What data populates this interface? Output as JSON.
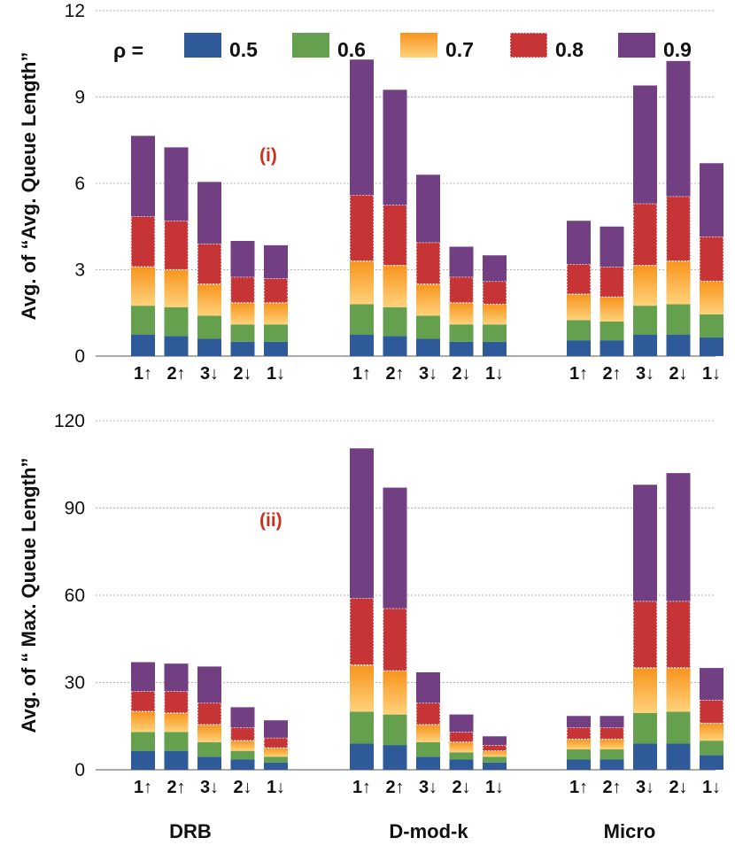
{
  "chart_data": {
    "type": "bar",
    "stacked": true,
    "legend": {
      "title": "ρ =",
      "placement": "top",
      "entries": [
        "0.5",
        "0.6",
        "0.7",
        "0.8",
        "0.9"
      ]
    },
    "colors": {
      "0.5": "#2f5a9a",
      "0.6": "#64a04e",
      "0.7": "#f7941d",
      "0.7_light": "#ffd27a",
      "0.8": "#c73435",
      "0.9": "#713f82"
    },
    "groups": [
      "DRB",
      "D-mod-k",
      "Micro"
    ],
    "categories": [
      "1↑",
      "2↑",
      "3↓",
      "2↓",
      "1↓"
    ],
    "panels": [
      {
        "id": "i",
        "annotation": "(i)",
        "ylabel": "Avg. of “Avg. Queue Length”",
        "ylim": [
          0,
          12
        ],
        "yticks": [
          "0",
          "3",
          "6",
          "9",
          "12"
        ],
        "grid": true,
        "series": [
          {
            "name": "0.5",
            "values": [
              [
                0.75,
                0.7,
                0.6,
                0.5,
                0.5
              ],
              [
                0.75,
                0.7,
                0.6,
                0.5,
                0.5
              ],
              [
                0.55,
                0.55,
                0.75,
                0.75,
                0.65
              ]
            ]
          },
          {
            "name": "0.6",
            "values": [
              [
                1.0,
                1.0,
                0.8,
                0.6,
                0.6
              ],
              [
                1.05,
                1.0,
                0.8,
                0.6,
                0.6
              ],
              [
                0.7,
                0.65,
                1.0,
                1.05,
                0.8
              ]
            ]
          },
          {
            "name": "0.7",
            "values": [
              [
                1.35,
                1.3,
                1.1,
                0.75,
                0.75
              ],
              [
                1.5,
                1.45,
                1.1,
                0.75,
                0.7
              ],
              [
                0.9,
                0.85,
                1.4,
                1.5,
                1.15
              ]
            ]
          },
          {
            "name": "0.8",
            "values": [
              [
                1.75,
                1.7,
                1.4,
                0.9,
                0.85
              ],
              [
                2.3,
                2.1,
                1.45,
                0.9,
                0.8
              ],
              [
                1.05,
                1.05,
                2.15,
                2.25,
                1.55
              ]
            ]
          },
          {
            "name": "0.9",
            "values": [
              [
                2.8,
                2.55,
                2.15,
                1.25,
                1.15
              ],
              [
                4.7,
                4.0,
                2.35,
                1.05,
                0.9
              ],
              [
                1.5,
                1.4,
                4.1,
                4.7,
                2.55
              ]
            ]
          }
        ]
      },
      {
        "id": "ii",
        "annotation": "(ii)",
        "ylabel": "Avg. of “ Max. Queue Length”",
        "ylim": [
          0,
          120
        ],
        "yticks": [
          "0",
          "30",
          "60",
          "90",
          "120"
        ],
        "grid": true,
        "series": [
          {
            "name": "0.5",
            "values": [
              [
                6.5,
                6.5,
                4.5,
                3.5,
                2.5
              ],
              [
                9.0,
                8.5,
                4.5,
                3.5,
                2.5
              ],
              [
                3.5,
                3.5,
                9.0,
                9.0,
                5.0
              ]
            ]
          },
          {
            "name": "0.6",
            "values": [
              [
                6.5,
                6.5,
                5.0,
                3.0,
                2.0
              ],
              [
                11.0,
                10.5,
                5.0,
                2.5,
                2.0
              ],
              [
                3.5,
                3.5,
                10.5,
                11.0,
                5.0
              ]
            ]
          },
          {
            "name": "0.7",
            "values": [
              [
                7.0,
                6.5,
                6.0,
                3.5,
                3.0
              ],
              [
                16.0,
                15.0,
                6.0,
                3.5,
                2.0
              ],
              [
                3.5,
                3.5,
                15.5,
                15.0,
                6.0
              ]
            ]
          },
          {
            "name": "0.8",
            "values": [
              [
                7.0,
                7.5,
                7.5,
                4.5,
                3.5
              ],
              [
                23.0,
                21.5,
                7.5,
                3.5,
                2.0
              ],
              [
                4.0,
                4.0,
                23.0,
                23.0,
                8.0
              ]
            ]
          },
          {
            "name": "0.9",
            "values": [
              [
                10.0,
                9.5,
                12.5,
                7.0,
                6.0
              ],
              [
                51.5,
                41.5,
                10.5,
                6.0,
                3.0
              ],
              [
                4.0,
                4.0,
                40.0,
                44.0,
                11.0
              ]
            ]
          }
        ]
      }
    ]
  }
}
